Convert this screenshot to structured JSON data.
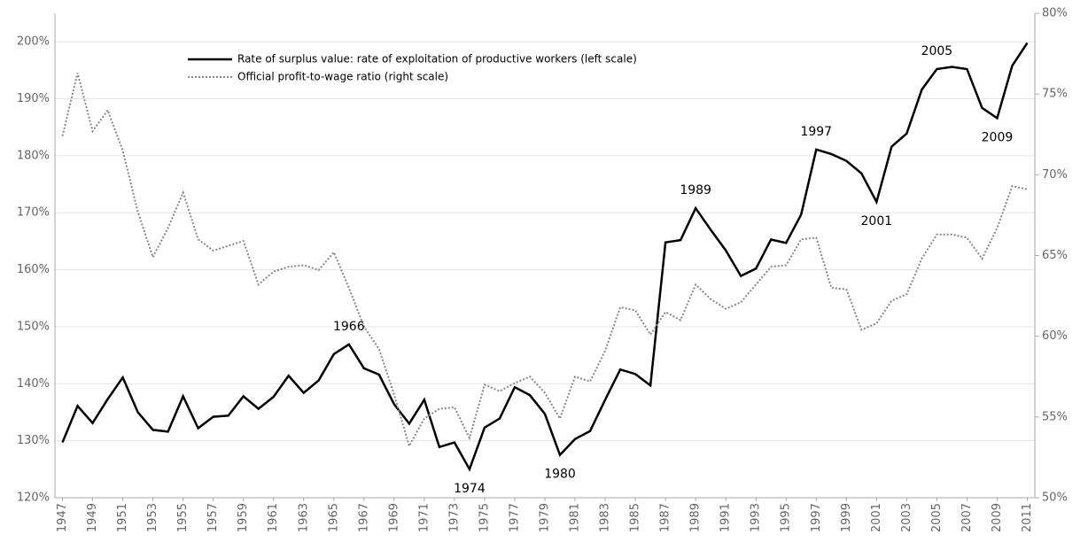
{
  "chart_data": {
    "type": "line",
    "x": [
      1947,
      1948,
      1949,
      1950,
      1951,
      1952,
      1953,
      1954,
      1955,
      1956,
      1957,
      1958,
      1959,
      1960,
      1961,
      1962,
      1963,
      1964,
      1965,
      1966,
      1967,
      1968,
      1969,
      1970,
      1971,
      1972,
      1973,
      1974,
      1975,
      1976,
      1977,
      1978,
      1979,
      1980,
      1981,
      1982,
      1983,
      1984,
      1985,
      1986,
      1987,
      1988,
      1989,
      1990,
      1991,
      1992,
      1993,
      1994,
      1995,
      1996,
      1997,
      1998,
      1999,
      2000,
      2001,
      2002,
      2003,
      2004,
      2005,
      2006,
      2007,
      2008,
      2009,
      2010,
      2011
    ],
    "series": [
      {
        "name": "Rate of surplus value: rate of exploitation of productive workers (left scale)",
        "color": "#000000",
        "style": "solid",
        "values": [
          129.7,
          136.1,
          133.1,
          137.3,
          141.1,
          135.0,
          131.9,
          131.6,
          137.8,
          132.2,
          134.2,
          134.4,
          137.8,
          135.6,
          137.7,
          141.4,
          138.4,
          140.6,
          145.2,
          146.9,
          142.7,
          141.6,
          136.4,
          133.0,
          137.2,
          128.9,
          129.7,
          125.0,
          132.3,
          133.9,
          139.4,
          138.0,
          134.7,
          127.5,
          130.3,
          131.7,
          137.2,
          142.5,
          141.7,
          139.7,
          164.8,
          165.2,
          170.8,
          167.0,
          163.4,
          158.9,
          160.2,
          165.3,
          164.7,
          169.7,
          181.1,
          180.3,
          179.1,
          176.9,
          171.9,
          181.6,
          183.9,
          191.6,
          195.2,
          195.6,
          195.2,
          188.4,
          186.6,
          195.8,
          199.8
        ]
      },
      {
        "name": "Official profit-to-wage ratio (right scale)",
        "color": "#888888",
        "style": "dotted",
        "axis": "y2",
        "values": [
          72.4,
          76.3,
          72.7,
          74.0,
          71.5,
          67.7,
          64.9,
          66.7,
          68.9,
          66.0,
          65.3,
          65.6,
          65.9,
          63.2,
          64.0,
          64.3,
          64.4,
          64.1,
          65.2,
          63.0,
          60.6,
          59.2,
          56.4,
          53.2,
          54.9,
          55.5,
          55.6,
          53.7,
          57.0,
          56.6,
          57.1,
          57.5,
          56.5,
          54.9,
          57.5,
          57.2,
          59.1,
          61.8,
          61.6,
          60.1,
          61.5,
          61.0,
          63.2,
          62.3,
          61.7,
          62.1,
          63.2,
          64.3,
          64.4,
          66.0,
          66.1,
          63.0,
          62.9,
          60.4,
          60.8,
          62.2,
          62.6,
          64.8,
          66.3,
          66.3,
          66.1,
          64.8,
          66.7,
          69.3,
          69.1
        ]
      }
    ],
    "annotations": [
      "1966",
      "1974",
      "1980",
      "1989",
      "1997",
      "2001",
      "2005",
      "2009"
    ],
    "xlim": [
      1946.5,
      2011.5
    ],
    "xticks": [
      1947,
      1949,
      1951,
      1953,
      1955,
      1957,
      1959,
      1961,
      1963,
      1965,
      1967,
      1969,
      1971,
      1973,
      1975,
      1977,
      1979,
      1981,
      1983,
      1985,
      1987,
      1989,
      1991,
      1993,
      1995,
      1997,
      1999,
      2001,
      2003,
      2005,
      2007,
      2009,
      2011
    ],
    "ylim": [
      120,
      205
    ],
    "yticks": [
      {
        "value": 120,
        "label": "120%"
      },
      {
        "value": 130,
        "label": "130%"
      },
      {
        "value": 140,
        "label": "140%"
      },
      {
        "value": 150,
        "label": "150%"
      },
      {
        "value": 160,
        "label": "160%"
      },
      {
        "value": 170,
        "label": "170%"
      },
      {
        "value": 180,
        "label": "180%"
      },
      {
        "value": 190,
        "label": "190%"
      },
      {
        "value": 200,
        "label": "200%"
      }
    ],
    "y2lim": [
      50,
      80
    ],
    "y2ticks": [
      {
        "value": 50,
        "label": "50%"
      },
      {
        "value": 55,
        "label": "55%"
      },
      {
        "value": 60,
        "label": "60%"
      },
      {
        "value": 65,
        "label": "65%"
      },
      {
        "value": 70,
        "label": "70%"
      },
      {
        "value": 75,
        "label": "75%"
      },
      {
        "value": 80,
        "label": "80%"
      }
    ],
    "grid": true,
    "legend": "upper-left"
  }
}
